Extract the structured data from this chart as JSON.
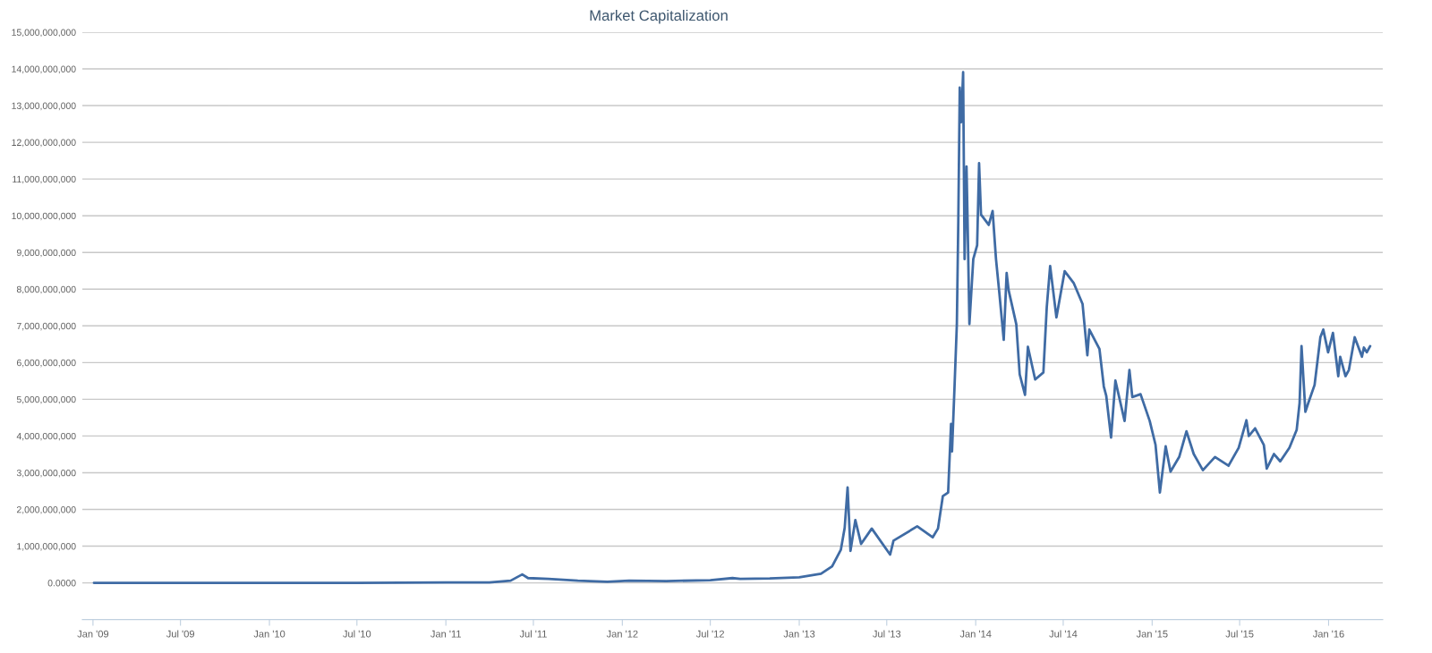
{
  "chart_data": {
    "type": "line",
    "title": "Market Capitalization",
    "x": [
      "2009-01-03",
      "2010-01-01",
      "2010-07-01",
      "2011-01-01",
      "2011-04-01",
      "2011-05-15",
      "2011-06-08",
      "2011-06-20",
      "2011-08-01",
      "2011-10-01",
      "2011-12-01",
      "2012-01-15",
      "2012-04-01",
      "2012-07-01",
      "2012-08-16",
      "2012-09-01",
      "2012-11-01",
      "2013-01-01",
      "2013-02-15",
      "2013-03-10",
      "2013-03-28",
      "2013-04-05",
      "2013-04-11",
      "2013-04-17",
      "2013-04-27",
      "2013-05-09",
      "2013-05-31",
      "2013-07-08",
      "2013-07-15",
      "2013-09-02",
      "2013-10-04",
      "2013-10-15",
      "2013-10-25",
      "2013-11-05",
      "2013-11-11",
      "2013-11-13",
      "2013-11-18",
      "2013-11-23",
      "2013-11-26",
      "2013-11-29",
      "2013-12-02",
      "2013-12-06",
      "2013-12-09",
      "2013-12-13",
      "2013-12-15",
      "2013-12-19",
      "2013-12-27",
      "2014-01-04",
      "2014-01-08",
      "2014-01-12",
      "2014-01-28",
      "2014-02-05",
      "2014-02-12",
      "2014-02-19",
      "2014-02-28",
      "2014-03-06",
      "2014-03-10",
      "2014-03-26",
      "2014-04-02",
      "2014-04-13",
      "2014-04-19",
      "2014-05-04",
      "2014-05-21",
      "2014-05-28",
      "2014-06-04",
      "2014-06-17",
      "2014-07-04",
      "2014-07-23",
      "2014-08-10",
      "2014-08-20",
      "2014-08-24",
      "2014-09-14",
      "2014-09-23",
      "2014-09-28",
      "2014-10-08",
      "2014-10-17",
      "2014-11-05",
      "2014-11-15",
      "2014-11-21",
      "2014-12-08",
      "2014-12-27",
      "2015-01-08",
      "2015-01-17",
      "2015-01-29",
      "2015-02-08",
      "2015-02-26",
      "2015-03-13",
      "2015-03-28",
      "2015-04-16",
      "2015-05-11",
      "2015-06-08",
      "2015-06-29",
      "2015-07-15",
      "2015-07-20",
      "2015-08-02",
      "2015-08-20",
      "2015-08-26",
      "2015-09-10",
      "2015-09-23",
      "2015-10-12",
      "2015-10-27",
      "2015-11-02",
      "2015-11-06",
      "2015-11-14",
      "2015-11-20",
      "2015-12-03",
      "2015-12-15",
      "2015-12-21",
      "2015-12-31",
      "2016-01-10",
      "2016-01-21",
      "2016-01-25",
      "2016-02-05",
      "2016-02-12",
      "2016-02-24",
      "2016-03-10",
      "2016-03-14",
      "2016-03-20",
      "2016-03-27"
    ],
    "series": [
      {
        "color": "#3f6ba4",
        "values": [
          0,
          0,
          0,
          10000000,
          10000000,
          60000000,
          230000000,
          130000000,
          110000000,
          60000000,
          30000000,
          60000000,
          50000000,
          70000000,
          130000000,
          110000000,
          120000000,
          150000000,
          250000000,
          450000000,
          900000000,
          1500000000,
          2600000000,
          870000000,
          1710000000,
          1060000000,
          1480000000,
          770000000,
          1150000000,
          1540000000,
          1240000000,
          1480000000,
          2360000000,
          2460000000,
          4330000000,
          3580000000,
          5270000000,
          7040000000,
          9840000000,
          13490000000,
          12550000000,
          13910000000,
          8820000000,
          11340000000,
          10030000000,
          7050000000,
          8820000000,
          9200000000,
          11430000000,
          10030000000,
          9750000000,
          10130000000,
          8820000000,
          7880000000,
          6620000000,
          8440000000,
          7980000000,
          7040000000,
          5680000000,
          5120000000,
          6430000000,
          5540000000,
          5730000000,
          7510000000,
          8630000000,
          7230000000,
          8490000000,
          8160000000,
          7600000000,
          6200000000,
          6900000000,
          6370000000,
          5350000000,
          5100000000,
          3960000000,
          5510000000,
          4410000000,
          5800000000,
          5060000000,
          5140000000,
          4410000000,
          3760000000,
          2460000000,
          3720000000,
          3030000000,
          3430000000,
          4130000000,
          3510000000,
          3070000000,
          3430000000,
          3190000000,
          3680000000,
          4430000000,
          4000000000,
          4210000000,
          3760000000,
          3110000000,
          3510000000,
          3310000000,
          3680000000,
          4170000000,
          4900000000,
          6450000000,
          4660000000,
          4900000000,
          5390000000,
          6690000000,
          6900000000,
          6280000000,
          6810000000,
          5630000000,
          6160000000,
          5630000000,
          5800000000,
          6690000000,
          6160000000,
          6410000000,
          6280000000,
          6450000000
        ]
      }
    ],
    "xlim": [
      "2008-12-10",
      "2016-04-22"
    ],
    "xticks": [
      {
        "value": "2009-01-01",
        "label": "Jan '09"
      },
      {
        "value": "2009-07-01",
        "label": "Jul '09"
      },
      {
        "value": "2010-01-01",
        "label": "Jan '10"
      },
      {
        "value": "2010-07-01",
        "label": "Jul '10"
      },
      {
        "value": "2011-01-01",
        "label": "Jan '11"
      },
      {
        "value": "2011-07-01",
        "label": "Jul '11"
      },
      {
        "value": "2012-01-01",
        "label": "Jan '12"
      },
      {
        "value": "2012-07-01",
        "label": "Jul '12"
      },
      {
        "value": "2013-01-01",
        "label": "Jan '13"
      },
      {
        "value": "2013-07-01",
        "label": "Jul '13"
      },
      {
        "value": "2014-01-01",
        "label": "Jan '14"
      },
      {
        "value": "2014-07-01",
        "label": "Jul '14"
      },
      {
        "value": "2015-01-01",
        "label": "Jan '15"
      },
      {
        "value": "2015-07-01",
        "label": "Jul '15"
      },
      {
        "value": "2016-01-01",
        "label": "Jan '16"
      }
    ],
    "ylim": [
      -1000000000,
      15000000000
    ],
    "yticks": [
      {
        "value": 0,
        "label": "0.0000"
      },
      {
        "value": 1000000000,
        "label": "1,000,000,000"
      },
      {
        "value": 2000000000,
        "label": "2,000,000,000"
      },
      {
        "value": 3000000000,
        "label": "3,000,000,000"
      },
      {
        "value": 4000000000,
        "label": "4,000,000,000"
      },
      {
        "value": 5000000000,
        "label": "5,000,000,000"
      },
      {
        "value": 6000000000,
        "label": "6,000,000,000"
      },
      {
        "value": 7000000000,
        "label": "7,000,000,000"
      },
      {
        "value": 8000000000,
        "label": "8,000,000,000"
      },
      {
        "value": 9000000000,
        "label": "9,000,000,000"
      },
      {
        "value": 10000000000,
        "label": "10,000,000,000"
      },
      {
        "value": 11000000000,
        "label": "11,000,000,000"
      },
      {
        "value": 12000000000,
        "label": "12,000,000,000"
      },
      {
        "value": 13000000000,
        "label": "13,000,000,000"
      },
      {
        "value": 14000000000,
        "label": "14,000,000,000"
      },
      {
        "value": 15000000000,
        "label": "15,000,000,000"
      }
    ],
    "grid": "y",
    "marker": "none",
    "line_style": "solid"
  }
}
